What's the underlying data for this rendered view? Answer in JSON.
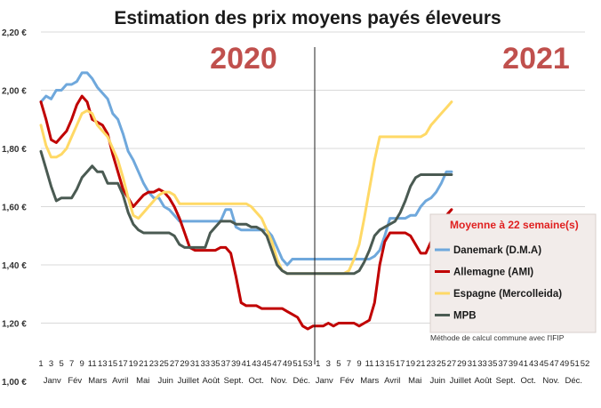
{
  "chart_data": {
    "type": "line",
    "title": "Estimation des prix moyens payés éleveurs",
    "years": [
      "2020",
      "2021"
    ],
    "ylim": [
      1.0,
      2.2
    ],
    "yticks": [
      "1,00 €",
      "1,20 €",
      "1,40 €",
      "1,60 €",
      "1,80 €",
      "2,00 €",
      "2,20 €"
    ],
    "xticks": [
      "1",
      "3",
      "5",
      "7",
      "9",
      "11",
      "13",
      "15",
      "17",
      "19",
      "21",
      "23",
      "25",
      "27",
      "29",
      "31",
      "33",
      "35",
      "37",
      "39",
      "41",
      "43",
      "45",
      "47",
      "49",
      "51",
      "53",
      "1",
      "3",
      "5",
      "7",
      "9",
      "11",
      "13",
      "15",
      "17",
      "19",
      "21",
      "23",
      "25",
      "27",
      "29",
      "31",
      "33",
      "35",
      "37",
      "39",
      "41",
      "43",
      "45",
      "47",
      "49",
      "51",
      "52"
    ],
    "months": [
      "Janv",
      "Fév",
      "Mars",
      "Avril",
      "Mai",
      "Juin",
      "Juillet",
      "Août",
      "Sept.",
      "Oct.",
      "Nov.",
      "Déc.",
      "Janv",
      "Fév",
      "Mars",
      "Avril",
      "Mai",
      "Juin",
      "Juillet",
      "Août",
      "Sept.",
      "Oct.",
      "Nov.",
      "Déc."
    ],
    "legend": {
      "title": "Moyenne à  22 semaine(s)",
      "note": "Méthode de calcul commune avec l'IFIP"
    },
    "grid": true,
    "series": [
      {
        "name": "Danemark (D.M.A)",
        "color": "#6fa8dc",
        "values": [
          1.96,
          1.98,
          1.97,
          2.0,
          2.0,
          2.02,
          2.02,
          2.03,
          2.06,
          2.06,
          2.04,
          2.01,
          1.99,
          1.97,
          1.92,
          1.9,
          1.85,
          1.79,
          1.76,
          1.72,
          1.68,
          1.65,
          1.63,
          1.63,
          1.6,
          1.59,
          1.57,
          1.55,
          1.55,
          1.55,
          1.55,
          1.55,
          1.55,
          1.55,
          1.55,
          1.55,
          1.59,
          1.59,
          1.53,
          1.52,
          1.52,
          1.52,
          1.52,
          1.52,
          1.52,
          1.5,
          1.46,
          1.42,
          1.4,
          1.42,
          1.42,
          1.42,
          1.42,
          1.42,
          1.42,
          1.42,
          1.42,
          1.42,
          1.42,
          1.42,
          1.42,
          1.42,
          1.42,
          1.42,
          1.42,
          1.43,
          1.45,
          1.5,
          1.56,
          1.56,
          1.56,
          1.56,
          1.57,
          1.57,
          1.6,
          1.62,
          1.63,
          1.65,
          1.68,
          1.72,
          1.72
        ]
      },
      {
        "name": "Allemagne (AMI)",
        "color": "#c00000",
        "values": [
          1.96,
          1.9,
          1.83,
          1.82,
          1.84,
          1.86,
          1.9,
          1.95,
          1.98,
          1.96,
          1.9,
          1.89,
          1.88,
          1.85,
          1.78,
          1.72,
          1.66,
          1.63,
          1.6,
          1.62,
          1.64,
          1.65,
          1.65,
          1.66,
          1.65,
          1.63,
          1.6,
          1.56,
          1.51,
          1.46,
          1.45,
          1.45,
          1.45,
          1.45,
          1.45,
          1.46,
          1.46,
          1.44,
          1.36,
          1.27,
          1.26,
          1.26,
          1.26,
          1.25,
          1.25,
          1.25,
          1.25,
          1.25,
          1.24,
          1.23,
          1.22,
          1.19,
          1.18,
          1.19,
          1.19,
          1.19,
          1.2,
          1.19,
          1.2,
          1.2,
          1.2,
          1.2,
          1.19,
          1.2,
          1.21,
          1.27,
          1.4,
          1.48,
          1.51,
          1.51,
          1.51,
          1.51,
          1.5,
          1.47,
          1.44,
          1.44,
          1.48,
          1.53,
          1.55,
          1.57,
          1.59
        ]
      },
      {
        "name": "Espagne (Mercolleida)",
        "color": "#ffd966",
        "values": [
          1.88,
          1.81,
          1.77,
          1.77,
          1.78,
          1.8,
          1.84,
          1.88,
          1.92,
          1.93,
          1.92,
          1.88,
          1.86,
          1.84,
          1.8,
          1.76,
          1.7,
          1.63,
          1.57,
          1.56,
          1.58,
          1.6,
          1.62,
          1.64,
          1.65,
          1.65,
          1.64,
          1.61,
          1.61,
          1.61,
          1.61,
          1.61,
          1.61,
          1.61,
          1.61,
          1.61,
          1.61,
          1.61,
          1.61,
          1.61,
          1.61,
          1.6,
          1.58,
          1.56,
          1.52,
          1.48,
          1.42,
          1.38,
          1.37,
          1.37,
          1.37,
          1.37,
          1.37,
          1.37,
          1.37,
          1.37,
          1.37,
          1.37,
          1.37,
          1.37,
          1.38,
          1.42,
          1.47,
          1.56,
          1.66,
          1.76,
          1.84,
          1.84,
          1.84,
          1.84,
          1.84,
          1.84,
          1.84,
          1.84,
          1.84,
          1.85,
          1.88,
          1.9,
          1.92,
          1.94,
          1.96
        ]
      },
      {
        "name": "MPB",
        "color": "#4a5a52",
        "values": [
          1.79,
          1.73,
          1.67,
          1.62,
          1.63,
          1.63,
          1.63,
          1.66,
          1.7,
          1.72,
          1.74,
          1.72,
          1.72,
          1.68,
          1.68,
          1.68,
          1.64,
          1.58,
          1.54,
          1.52,
          1.51,
          1.51,
          1.51,
          1.51,
          1.51,
          1.51,
          1.5,
          1.47,
          1.46,
          1.46,
          1.46,
          1.46,
          1.46,
          1.51,
          1.53,
          1.55,
          1.55,
          1.55,
          1.54,
          1.54,
          1.54,
          1.53,
          1.53,
          1.52,
          1.5,
          1.45,
          1.4,
          1.38,
          1.37,
          1.37,
          1.37,
          1.37,
          1.37,
          1.37,
          1.37,
          1.37,
          1.37,
          1.37,
          1.37,
          1.37,
          1.37,
          1.37,
          1.38,
          1.41,
          1.45,
          1.5,
          1.52,
          1.53,
          1.54,
          1.55,
          1.58,
          1.62,
          1.67,
          1.7,
          1.71,
          1.71,
          1.71,
          1.71,
          1.71,
          1.71,
          1.71
        ]
      }
    ]
  }
}
